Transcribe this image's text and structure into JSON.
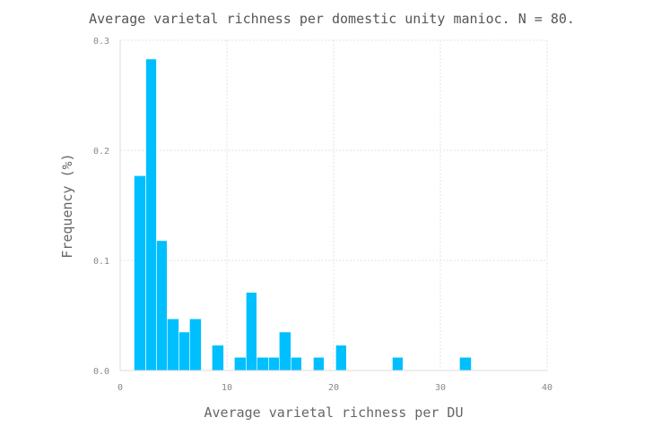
{
  "chart_data": {
    "type": "bar",
    "title": "Average varietal richness per domestic unity manioc. N = 80.",
    "xlabel": "Average varietal richness per DU",
    "ylabel": "Frequency (%)",
    "xlim": [
      0,
      40
    ],
    "ylim": [
      0,
      0.3
    ],
    "xticks": [
      0,
      10,
      20,
      30,
      40
    ],
    "xtick_labels": [
      "0",
      "10",
      "20",
      "30",
      "40"
    ],
    "yticks": [
      0,
      0.1,
      0.2,
      0.3
    ],
    "ytick_labels": [
      "0.0",
      "0.1",
      "0.2",
      "0.3"
    ],
    "grid": true,
    "bar_color": "#00bfff",
    "bins": [
      {
        "x0": 1.3,
        "x1": 2.4,
        "value": 0.177
      },
      {
        "x0": 2.4,
        "x1": 3.4,
        "value": 0.283
      },
      {
        "x0": 3.4,
        "x1": 4.4,
        "value": 0.118
      },
      {
        "x0": 4.4,
        "x1": 5.5,
        "value": 0.047
      },
      {
        "x0": 5.5,
        "x1": 6.5,
        "value": 0.035
      },
      {
        "x0": 6.5,
        "x1": 7.6,
        "value": 0.047
      },
      {
        "x0": 8.6,
        "x1": 9.7,
        "value": 0.023
      },
      {
        "x0": 10.7,
        "x1": 11.8,
        "value": 0.012
      },
      {
        "x0": 11.8,
        "x1": 12.8,
        "value": 0.071
      },
      {
        "x0": 12.8,
        "x1": 13.9,
        "value": 0.012
      },
      {
        "x0": 13.9,
        "x1": 14.9,
        "value": 0.012
      },
      {
        "x0": 14.9,
        "x1": 16.0,
        "value": 0.035
      },
      {
        "x0": 16.0,
        "x1": 17.0,
        "value": 0.012
      },
      {
        "x0": 18.1,
        "x1": 19.1,
        "value": 0.012
      },
      {
        "x0": 20.2,
        "x1": 21.2,
        "value": 0.023
      },
      {
        "x0": 25.5,
        "x1": 26.5,
        "value": 0.012
      },
      {
        "x0": 31.8,
        "x1": 32.9,
        "value": 0.012
      }
    ]
  }
}
